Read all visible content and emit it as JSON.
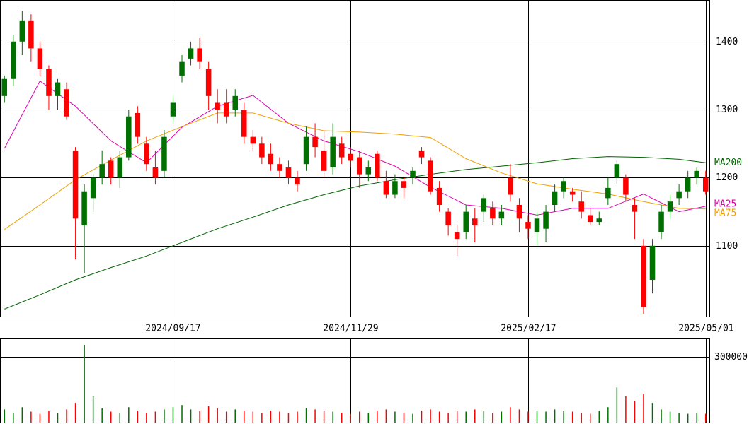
{
  "chart_data": {
    "type": "candlestick",
    "up_color": "#007000",
    "down_color": "#ff0000",
    "categories": [
      null,
      null,
      null,
      null,
      null,
      null,
      null,
      null,
      null,
      null,
      null,
      null,
      null,
      null,
      null,
      null,
      null,
      null,
      null,
      "2024/09/17",
      null,
      null,
      null,
      null,
      null,
      null,
      null,
      null,
      null,
      null,
      null,
      null,
      null,
      null,
      null,
      null,
      null,
      null,
      null,
      "2024/11/29",
      null,
      null,
      null,
      null,
      null,
      null,
      null,
      null,
      null,
      null,
      null,
      null,
      null,
      null,
      null,
      null,
      null,
      null,
      null,
      "2025/02/17",
      null,
      null,
      null,
      null,
      null,
      null,
      null,
      null,
      null,
      null,
      null,
      null,
      null,
      null,
      null,
      null,
      null,
      null,
      null,
      "2025/05/01"
    ],
    "ohlc": [
      [
        1320,
        1350,
        1310,
        1345
      ],
      [
        1345,
        1410,
        1335,
        1400
      ],
      [
        1400,
        1445,
        1380,
        1430
      ],
      [
        1430,
        1440,
        1370,
        1390
      ],
      [
        1390,
        1400,
        1350,
        1360
      ],
      [
        1360,
        1365,
        1300,
        1320
      ],
      [
        1320,
        1345,
        1300,
        1340
      ],
      [
        1330,
        1340,
        1285,
        1290
      ],
      [
        1240,
        1245,
        1080,
        1140
      ],
      [
        1130,
        1190,
        1060,
        1180
      ],
      [
        1170,
        1205,
        1150,
        1200
      ],
      [
        1200,
        1240,
        1190,
        1220
      ],
      [
        1225,
        1230,
        1190,
        1200
      ],
      [
        1200,
        1240,
        1185,
        1230
      ],
      [
        1230,
        1300,
        1225,
        1290
      ],
      [
        1295,
        1305,
        1250,
        1260
      ],
      [
        1250,
        1260,
        1210,
        1220
      ],
      [
        1215,
        1240,
        1190,
        1200
      ],
      [
        1210,
        1270,
        1200,
        1260
      ],
      [
        1290,
        1320,
        1280,
        1310
      ],
      [
        1350,
        1380,
        1340,
        1370
      ],
      [
        1375,
        1400,
        1365,
        1390
      ],
      [
        1390,
        1405,
        1360,
        1370
      ],
      [
        1360,
        1370,
        1300,
        1320
      ],
      [
        1310,
        1330,
        1280,
        1300
      ],
      [
        1310,
        1330,
        1280,
        1290
      ],
      [
        1300,
        1330,
        1290,
        1320
      ],
      [
        1300,
        1310,
        1250,
        1260
      ],
      [
        1260,
        1270,
        1240,
        1250
      ],
      [
        1250,
        1260,
        1220,
        1230
      ],
      [
        1235,
        1250,
        1210,
        1220
      ],
      [
        1220,
        1230,
        1200,
        1210
      ],
      [
        1215,
        1225,
        1190,
        1200
      ],
      [
        1200,
        1210,
        1180,
        1190
      ],
      [
        1220,
        1275,
        1210,
        1260
      ],
      [
        1260,
        1280,
        1230,
        1245
      ],
      [
        1240,
        1270,
        1200,
        1210
      ],
      [
        1215,
        1280,
        1205,
        1260
      ],
      [
        1250,
        1260,
        1220,
        1230
      ],
      [
        1235,
        1245,
        1215,
        1225
      ],
      [
        1230,
        1240,
        1185,
        1205
      ],
      [
        1205,
        1225,
        1195,
        1215
      ],
      [
        1235,
        1240,
        1195,
        1200
      ],
      [
        1195,
        1210,
        1170,
        1175
      ],
      [
        1175,
        1205,
        1170,
        1195
      ],
      [
        1195,
        1200,
        1170,
        1185
      ],
      [
        1200,
        1215,
        1190,
        1210
      ],
      [
        1240,
        1245,
        1220,
        1230
      ],
      [
        1225,
        1230,
        1175,
        1180
      ],
      [
        1185,
        1195,
        1150,
        1160
      ],
      [
        1150,
        1155,
        1115,
        1130
      ],
      [
        1120,
        1130,
        1085,
        1110
      ],
      [
        1120,
        1160,
        1110,
        1150
      ],
      [
        1140,
        1155,
        1105,
        1130
      ],
      [
        1150,
        1175,
        1135,
        1170
      ],
      [
        1155,
        1165,
        1130,
        1140
      ],
      [
        1140,
        1160,
        1130,
        1150
      ],
      [
        1200,
        1220,
        1165,
        1175
      ],
      [
        1160,
        1170,
        1120,
        1140
      ],
      [
        1135,
        1145,
        1110,
        1125
      ],
      [
        1120,
        1150,
        1100,
        1140
      ],
      [
        1125,
        1160,
        1105,
        1150
      ],
      [
        1160,
        1190,
        1150,
        1180
      ],
      [
        1180,
        1200,
        1170,
        1195
      ],
      [
        1180,
        1185,
        1165,
        1175
      ],
      [
        1165,
        1180,
        1140,
        1150
      ],
      [
        1145,
        1155,
        1130,
        1135
      ],
      [
        1135,
        1150,
        1130,
        1140
      ],
      [
        1170,
        1200,
        1160,
        1185
      ],
      [
        1200,
        1225,
        1190,
        1220
      ],
      [
        1200,
        1205,
        1165,
        1175
      ],
      [
        1160,
        1170,
        1110,
        1150
      ],
      [
        1100,
        1110,
        1000,
        1010
      ],
      [
        1050,
        1110,
        1030,
        1100
      ],
      [
        1120,
        1160,
        1110,
        1150
      ],
      [
        1150,
        1175,
        1140,
        1165
      ],
      [
        1170,
        1190,
        1160,
        1180
      ],
      [
        1180,
        1210,
        1170,
        1200
      ],
      [
        1200,
        1215,
        1190,
        1210
      ],
      [
        1200,
        1210,
        1175,
        1180
      ]
    ],
    "ylim": [
      996,
      1461
    ],
    "yticks": [
      1100,
      1200,
      1300,
      1400
    ],
    "ma_x": [
      0,
      4,
      8,
      12,
      16,
      20,
      24,
      28,
      32,
      36,
      40,
      44,
      48,
      52,
      56,
      60,
      64,
      68,
      72,
      76,
      79
    ],
    "moving_averages": [
      {
        "name": "MA200",
        "color": "#006400",
        "values": [
          1007,
          1028,
          1050,
          1068,
          1085,
          1105,
          1125,
          1142,
          1160,
          1175,
          1188,
          1197,
          1205,
          1212,
          1217,
          1222,
          1228,
          1231,
          1230,
          1227,
          1222
        ]
      },
      {
        "name": "MA25",
        "color": "#e000b0",
        "values": [
          1243,
          1342,
          1305,
          1254,
          1222,
          1274,
          1305,
          1321,
          1280,
          1254,
          1238,
          1217,
          1186,
          1160,
          1155,
          1145,
          1155,
          1155,
          1176,
          1150,
          1158
        ]
      },
      {
        "name": "MA75",
        "color": "#f0a000",
        "values": [
          1124,
          1160,
          1197,
          1226,
          1254,
          1275,
          1295,
          1295,
          1280,
          1269,
          1267,
          1264,
          1259,
          1228,
          1207,
          1191,
          1183,
          1176,
          1165,
          1155,
          1154
        ]
      }
    ],
    "volume": {
      "values": [
        60000,
        45000,
        70000,
        50000,
        40000,
        55000,
        45000,
        60000,
        90000,
        355000,
        120000,
        65000,
        50000,
        45000,
        70000,
        55000,
        45000,
        50000,
        60000,
        70000,
        80000,
        60000,
        55000,
        75000,
        65000,
        50000,
        60000,
        55000,
        50000,
        45000,
        55000,
        50000,
        45000,
        50000,
        65000,
        60000,
        55000,
        50000,
        45000,
        40000,
        50000,
        45000,
        55000,
        60000,
        50000,
        45000,
        40000,
        55000,
        60000,
        50000,
        45000,
        55000,
        50000,
        60000,
        55000,
        45000,
        50000,
        70000,
        60000,
        50000,
        55000,
        50000,
        60000,
        55000,
        50000,
        45000,
        40000,
        55000,
        70000,
        160000,
        120000,
        100000,
        130000,
        90000,
        60000,
        50000,
        45000,
        40000,
        45000,
        40000
      ],
      "ylim": [
        0,
        380600
      ],
      "yticks": [
        300000
      ]
    }
  }
}
